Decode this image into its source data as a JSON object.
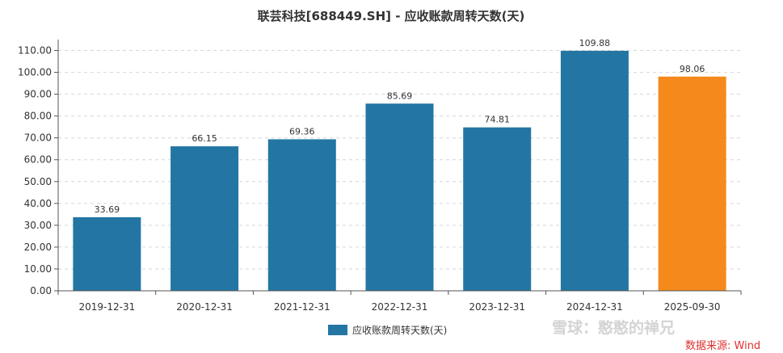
{
  "chart_data": {
    "type": "bar",
    "title": "联芸科技[688449.SH] - 应收账款周转天数(天)",
    "categories": [
      "2019-12-31",
      "2020-12-31",
      "2021-12-31",
      "2022-12-31",
      "2023-12-31",
      "2024-12-31",
      "2025-09-30"
    ],
    "values": [
      33.69,
      66.15,
      69.36,
      85.69,
      74.81,
      109.88,
      98.06
    ],
    "value_labels": [
      "33.69",
      "66.15",
      "69.36",
      "85.69",
      "74.81",
      "109.88",
      "98.06"
    ],
    "series": [
      {
        "name": "应收账款周转天数(天)",
        "values": [
          33.69,
          66.15,
          69.36,
          85.69,
          74.81,
          109.88,
          98.06
        ]
      }
    ],
    "ylim": [
      0,
      115
    ],
    "yticks": [
      "0.00",
      "10.00",
      "20.00",
      "30.00",
      "40.00",
      "50.00",
      "60.00",
      "70.00",
      "80.00",
      "90.00",
      "100.00",
      "110.00"
    ],
    "grid": true,
    "legend_position": "bottom-center",
    "colors": {
      "bar": "#2376a3",
      "highlight_bar": "#f5891c",
      "highlight_index": 6
    }
  },
  "watermark": {
    "text": "雪球：憨憨的禅兄"
  },
  "source": {
    "text": "数据来源: Wind"
  }
}
